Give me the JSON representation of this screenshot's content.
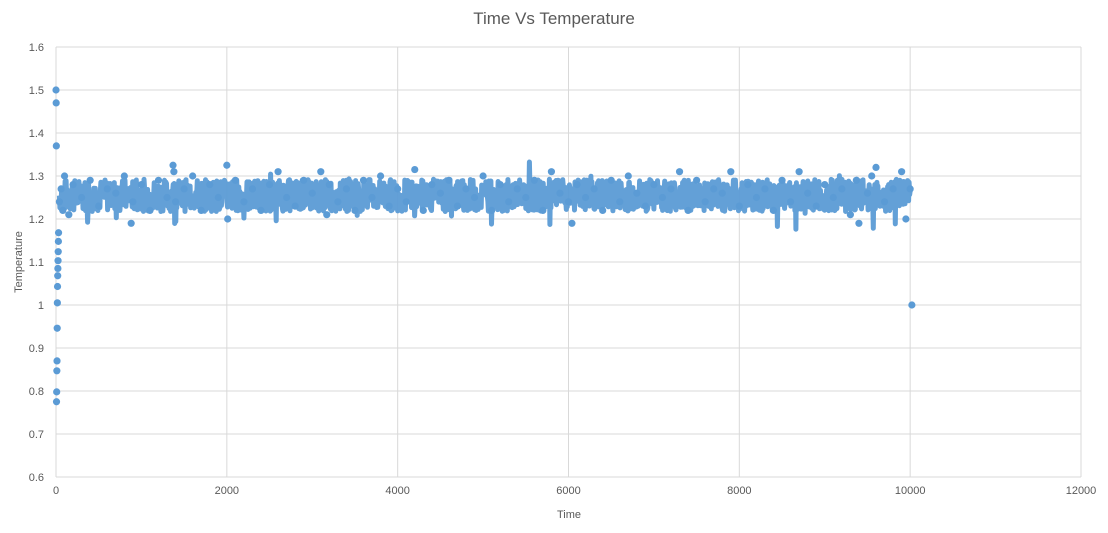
{
  "chart_data": {
    "type": "scatter",
    "title": "Time Vs Temperature",
    "xlabel": "Time",
    "ylabel": "Temperature",
    "xlim": [
      0,
      12000
    ],
    "ylim": [
      0.6,
      1.6
    ],
    "xticks": [
      "0",
      "2000",
      "4000",
      "6000",
      "8000",
      "10000",
      "12000"
    ],
    "yticks": [
      "0.6",
      "0.7",
      "0.8",
      "0.9",
      "1",
      "1.1",
      "1.2",
      "1.3",
      "1.4",
      "1.5",
      "1.6"
    ],
    "grid": true,
    "legend": "none",
    "marker_color": "#5B9BD5",
    "series": [
      {
        "x": [
          0,
          2,
          4,
          6,
          8,
          10,
          12,
          14,
          16,
          18,
          20,
          22,
          24,
          26,
          28,
          30,
          40,
          60,
          80,
          100,
          150,
          200,
          300,
          400,
          500,
          600,
          700,
          800,
          880,
          900,
          1000,
          1100,
          1200,
          1300,
          1370,
          1380,
          1400,
          1500,
          1600,
          1700,
          1800,
          1900,
          2000,
          2010,
          2100,
          2200,
          2300,
          2400,
          2500,
          2600,
          2700,
          2800,
          2900,
          3000,
          3100,
          3170,
          3200,
          3300,
          3400,
          3500,
          3600,
          3700,
          3800,
          3900,
          4000,
          4100,
          4200,
          4300,
          4400,
          4500,
          4600,
          4700,
          4800,
          4900,
          5000,
          5100,
          5200,
          5300,
          5400,
          5500,
          5600,
          5700,
          5800,
          5900,
          6000,
          6040,
          6100,
          6200,
          6300,
          6400,
          6500,
          6600,
          6700,
          6800,
          6900,
          7000,
          7100,
          7200,
          7300,
          7400,
          7500,
          7600,
          7700,
          7800,
          7900,
          8000,
          8100,
          8200,
          8300,
          8400,
          8500,
          8600,
          8700,
          8800,
          8900,
          9000,
          9100,
          9200,
          9300,
          9370,
          9400,
          9500,
          9550,
          9600,
          9700,
          9800,
          9900,
          9950,
          10000,
          10020
        ],
        "y": [
          1.5,
          1.47,
          1.37,
          0.775,
          0.798,
          0.847,
          0.87,
          0.946,
          1.005,
          1.043,
          1.068,
          1.085,
          1.103,
          1.124,
          1.148,
          1.168,
          1.24,
          1.27,
          1.22,
          1.3,
          1.21,
          1.28,
          1.25,
          1.29,
          1.23,
          1.27,
          1.26,
          1.3,
          1.19,
          1.24,
          1.28,
          1.22,
          1.29,
          1.25,
          1.325,
          1.31,
          1.24,
          1.27,
          1.3,
          1.22,
          1.28,
          1.25,
          1.325,
          1.2,
          1.29,
          1.24,
          1.27,
          1.22,
          1.28,
          1.31,
          1.25,
          1.23,
          1.29,
          1.26,
          1.31,
          1.21,
          1.28,
          1.24,
          1.27,
          1.22,
          1.29,
          1.25,
          1.3,
          1.23,
          1.27,
          1.24,
          1.315,
          1.22,
          1.28,
          1.26,
          1.29,
          1.23,
          1.27,
          1.25,
          1.3,
          1.22,
          1.28,
          1.24,
          1.27,
          1.25,
          1.29,
          1.22,
          1.31,
          1.26,
          1.24,
          1.19,
          1.28,
          1.25,
          1.27,
          1.22,
          1.29,
          1.24,
          1.3,
          1.26,
          1.23,
          1.28,
          1.25,
          1.27,
          1.31,
          1.22,
          1.29,
          1.24,
          1.27,
          1.26,
          1.31,
          1.23,
          1.28,
          1.25,
          1.27,
          1.22,
          1.29,
          1.24,
          1.31,
          1.26,
          1.23,
          1.28,
          1.25,
          1.27,
          1.21,
          1.29,
          1.19,
          1.26,
          1.3,
          1.32,
          1.24,
          1.27,
          1.31,
          1.2,
          1.27,
          1.0
        ]
      }
    ]
  }
}
